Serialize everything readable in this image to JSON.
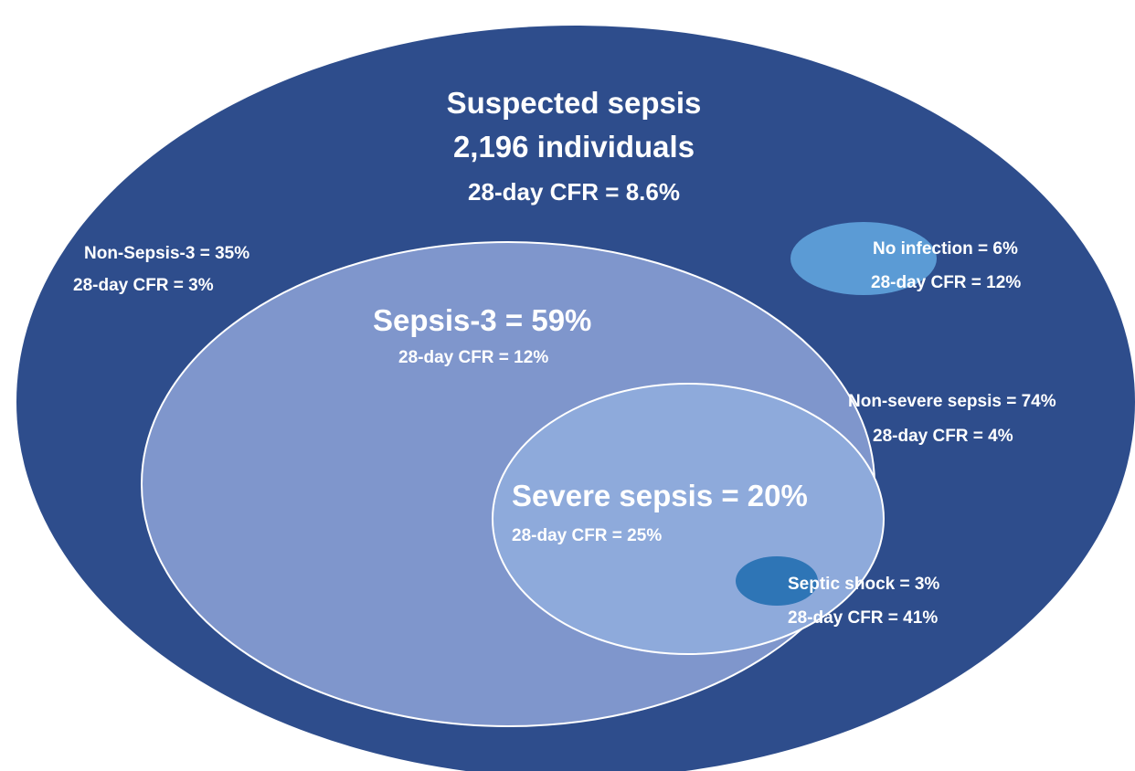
{
  "nodes": [
    {
      "id": "suspected-sepsis",
      "lines": [
        "Suspected sepsis",
        "2,196 individuals",
        "28-day CFR = 8.6%"
      ]
    },
    {
      "id": "non-sepsis-3",
      "lines": [
        "Non-Sepsis-3 = 35%",
        "28-day CFR = 3%"
      ]
    },
    {
      "id": "no-infection",
      "lines": [
        "No infection = 6%",
        "28-day CFR = 12%"
      ]
    },
    {
      "id": "sepsis-3",
      "lines": [
        "Sepsis-3 = 59%",
        "28-day CFR = 12%"
      ]
    },
    {
      "id": "non-severe-sepsis",
      "lines": [
        "Non-severe sepsis = 74%",
        "28-day CFR = 4%"
      ]
    },
    {
      "id": "severe-sepsis",
      "lines": [
        "Severe sepsis = 20%",
        "28-day CFR = 25%"
      ]
    },
    {
      "id": "septic-shock",
      "lines": [
        "Septic shock = 3%",
        "28-day CFR = 41%"
      ]
    }
  ]
}
